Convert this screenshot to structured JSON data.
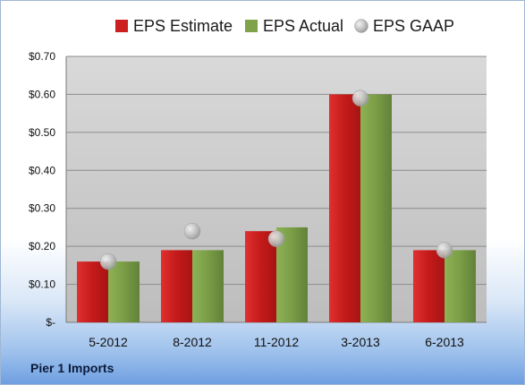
{
  "company": "Pier 1 Imports",
  "colors": {
    "estimate": "#cc1f1f",
    "actual": "#7fa24a",
    "gaap": "#c6c6c6",
    "plot_bg": "#dcdcdc"
  },
  "chart_data": {
    "type": "bar",
    "categories": [
      "5-2012",
      "8-2012",
      "11-2012",
      "3-2013",
      "6-2013"
    ],
    "series": [
      {
        "name": "EPS Estimate",
        "type": "bar",
        "values": [
          0.16,
          0.19,
          0.24,
          0.6,
          0.19
        ]
      },
      {
        "name": "EPS Actual",
        "type": "bar",
        "values": [
          0.16,
          0.19,
          0.25,
          0.6,
          0.19
        ]
      },
      {
        "name": "EPS GAAP",
        "type": "scatter",
        "values": [
          0.16,
          0.24,
          0.22,
          0.59,
          0.19
        ]
      }
    ],
    "ylim": [
      0,
      0.7
    ],
    "yticks": [
      0,
      0.1,
      0.2,
      0.3,
      0.4,
      0.5,
      0.6,
      0.7
    ],
    "ytick_labels": [
      "$-",
      "$0.10",
      "$0.20",
      "$0.30",
      "$0.40",
      "$0.50",
      "$0.60",
      "$0.70"
    ],
    "grid": true,
    "legend": "top"
  }
}
